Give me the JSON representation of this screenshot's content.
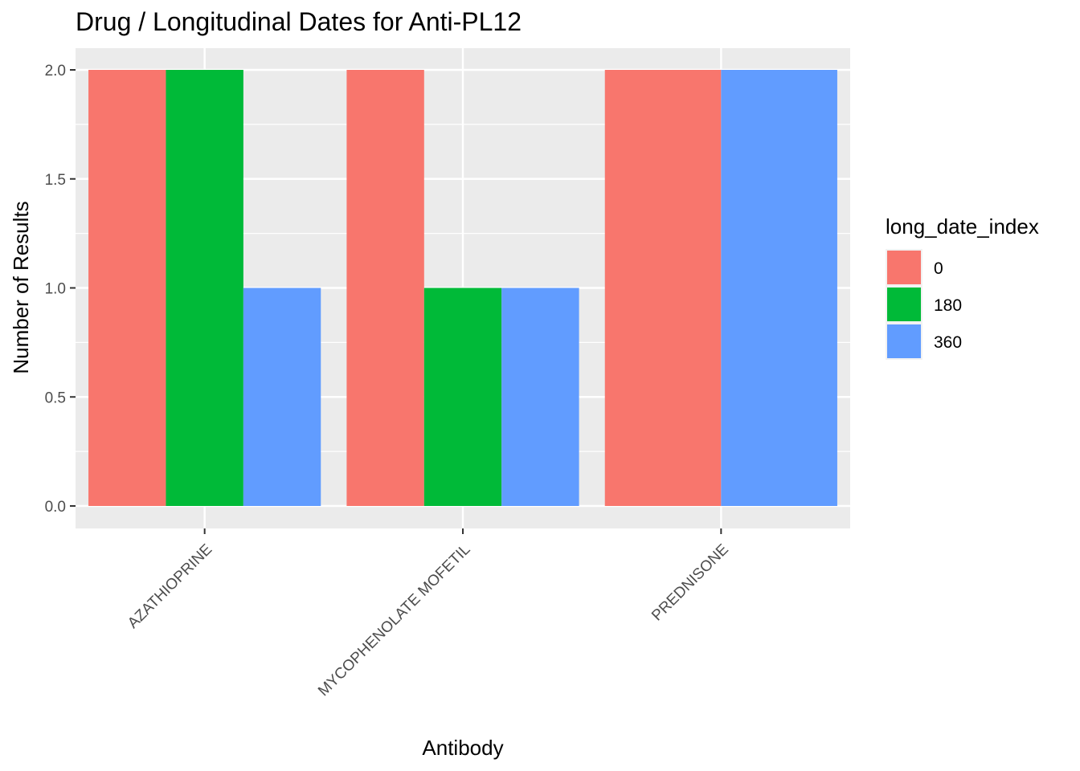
{
  "chart_data": {
    "type": "bar",
    "title": "Drug / Longitudinal Dates for Anti-PL12",
    "xlabel": "Antibody",
    "ylabel": "Number of Results",
    "categories": [
      "AZATHIOPRINE",
      "MYCOPHENOLATE MOFETIL",
      "PREDNISONE"
    ],
    "series": [
      {
        "name": "0",
        "color": "#F8766D",
        "values": [
          2,
          2,
          2
        ]
      },
      {
        "name": "180",
        "color": "#00BA38",
        "values": [
          2,
          1,
          null
        ]
      },
      {
        "name": "360",
        "color": "#619CFF",
        "values": [
          1,
          1,
          2
        ]
      }
    ],
    "ylim": [
      0,
      2
    ],
    "yticks": [
      0,
      0.5,
      1,
      1.5,
      2
    ],
    "ytick_labels": [
      "0.0",
      "0.5",
      "1.0",
      "1.5",
      "2.0"
    ],
    "grid": true,
    "panel_background": "#EBEBEB",
    "legend": {
      "title": "long_date_index",
      "position": "right"
    }
  }
}
